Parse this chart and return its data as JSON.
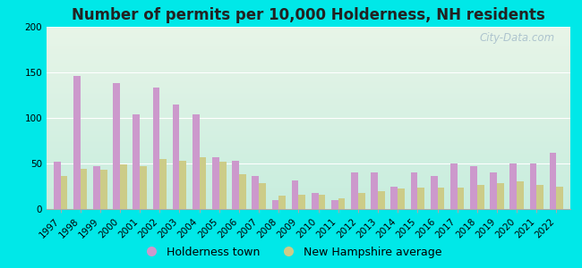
{
  "title": "Number of permits per 10,000 Holderness, NH residents",
  "years": [
    1997,
    1998,
    1999,
    2000,
    2001,
    2002,
    2003,
    2004,
    2005,
    2006,
    2007,
    2008,
    2009,
    2010,
    2011,
    2012,
    2013,
    2014,
    2015,
    2016,
    2017,
    2018,
    2019,
    2020,
    2021,
    2022
  ],
  "holderness": [
    52,
    146,
    47,
    138,
    104,
    133,
    115,
    104,
    57,
    53,
    36,
    10,
    31,
    18,
    10,
    40,
    40,
    25,
    40,
    36,
    50,
    47,
    40,
    50,
    50,
    62
  ],
  "nh_avg": [
    36,
    44,
    43,
    49,
    47,
    55,
    53,
    57,
    52,
    38,
    28,
    15,
    16,
    16,
    12,
    18,
    20,
    23,
    24,
    24,
    24,
    26,
    28,
    30,
    26,
    25
  ],
  "holderness_color": "#cc99cc",
  "nh_avg_color": "#cccc88",
  "ylim": [
    0,
    200
  ],
  "yticks": [
    0,
    50,
    100,
    150,
    200
  ],
  "bg_outer": "#00e8e8",
  "bg_plot_color1": "#e6f5e6",
  "bg_plot_color2": "#c8eedd",
  "watermark": "City-Data.com",
  "legend_holderness": "Holderness town",
  "legend_nh": "New Hampshire average",
  "title_fontsize": 12,
  "tick_fontsize": 7.5,
  "legend_fontsize": 9
}
